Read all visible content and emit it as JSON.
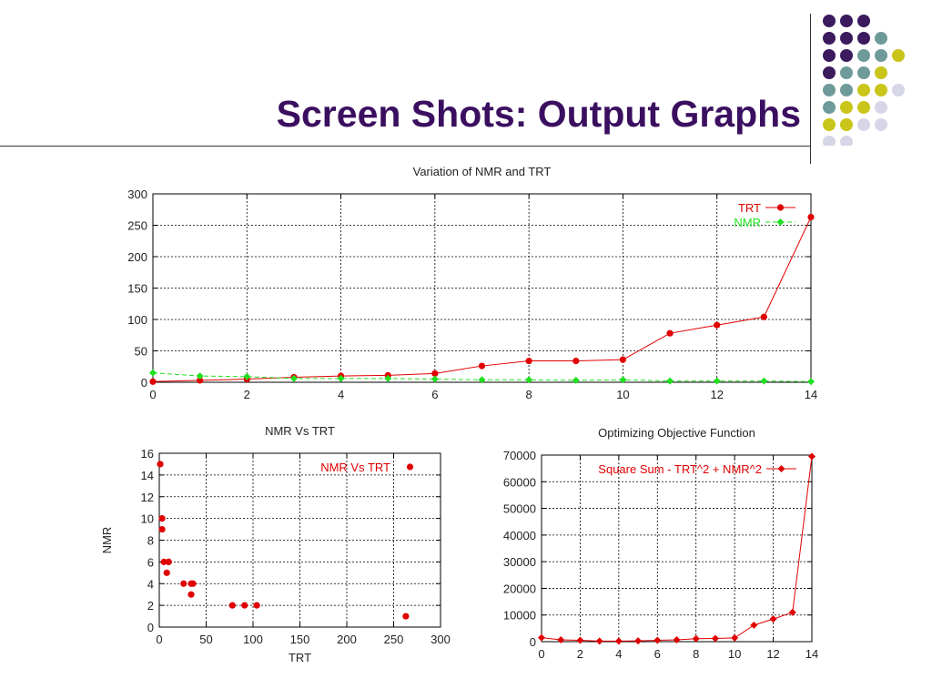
{
  "slide": {
    "title": "Screen Shots: Output Graphs",
    "dot_colors": {
      "purple": "#3b1a5e",
      "teal": "#6f9a9a",
      "olive": "#c9c51a",
      "lavender": "#d6d6e6"
    },
    "dot_grid": [
      [
        "purple",
        "purple",
        "purple"
      ],
      [
        "purple",
        "purple",
        "purple",
        "teal"
      ],
      [
        "purple",
        "purple",
        "teal",
        "teal",
        "olive"
      ],
      [
        "purple",
        "teal",
        "teal",
        "olive"
      ],
      [
        "teal",
        "teal",
        "olive",
        "olive",
        "lavender"
      ],
      [
        "teal",
        "olive",
        "olive",
        "lavender"
      ],
      [
        "olive",
        "olive",
        "lavender",
        "lavender"
      ],
      [
        "lavender",
        "lavender"
      ]
    ]
  },
  "chart_data": [
    {
      "type": "line",
      "title": "Variation of NMR and TRT",
      "xlabel": "",
      "ylabel": "",
      "xlim": [
        0,
        14
      ],
      "ylim": [
        0,
        300
      ],
      "xticks": [
        0,
        2,
        4,
        6,
        8,
        10,
        12,
        14
      ],
      "yticks": [
        0,
        50,
        100,
        150,
        200,
        250,
        300
      ],
      "grid": true,
      "legend": "top-right",
      "series": [
        {
          "name": "TRT",
          "color": "#e00000",
          "marker": "circle",
          "dash": false,
          "x": [
            0,
            1,
            2,
            3,
            4,
            5,
            6,
            7,
            8,
            9,
            10,
            11,
            12,
            13,
            14
          ],
          "y": [
            1,
            3,
            5,
            8,
            10,
            11,
            14,
            26,
            34,
            34,
            36,
            78,
            91,
            104,
            263
          ]
        },
        {
          "name": "NMR",
          "color": "#20e020",
          "marker": "diamond",
          "dash": true,
          "x": [
            0,
            1,
            2,
            3,
            4,
            5,
            6,
            7,
            8,
            9,
            10,
            11,
            12,
            13,
            14
          ],
          "y": [
            15,
            10,
            9,
            6,
            6,
            6,
            5,
            4,
            4,
            3,
            4,
            2,
            2,
            2,
            1
          ]
        }
      ]
    },
    {
      "type": "scatter",
      "title": "NMR Vs TRT",
      "xlabel": "TRT",
      "ylabel": "NMR",
      "xlim": [
        0,
        300
      ],
      "ylim": [
        0,
        16
      ],
      "xticks": [
        0,
        50,
        100,
        150,
        200,
        250,
        300
      ],
      "yticks": [
        0,
        2,
        4,
        6,
        8,
        10,
        12,
        14,
        16
      ],
      "grid": true,
      "legend": "top-right",
      "series": [
        {
          "name": "NMR Vs TRT",
          "color": "#e00000",
          "marker": "circle",
          "x": [
            1,
            3,
            3,
            5,
            8,
            10,
            10,
            26,
            34,
            34,
            36,
            78,
            91,
            104,
            263
          ],
          "y": [
            15,
            10,
            9,
            6,
            5,
            6,
            6,
            4,
            4,
            3,
            4,
            2,
            2,
            2,
            1
          ]
        }
      ]
    },
    {
      "type": "line",
      "title": "Optimizing Objective Function",
      "xlabel": "",
      "ylabel": "",
      "xlim": [
        0,
        14
      ],
      "ylim": [
        0,
        70000
      ],
      "xticks": [
        0,
        2,
        4,
        6,
        8,
        10,
        12,
        14
      ],
      "yticks": [
        0,
        10000,
        20000,
        30000,
        40000,
        50000,
        60000,
        70000
      ],
      "grid": true,
      "legend": "top-right",
      "series": [
        {
          "name": "Square Sum - TRT^2 + NMR^2",
          "color": "#e00000",
          "marker": "diamond",
          "dash": false,
          "x": [
            0,
            1,
            2,
            3,
            4,
            5,
            6,
            7,
            8,
            9,
            10,
            11,
            12,
            13,
            14
          ],
          "y": [
            1500,
            700,
            500,
            200,
            200,
            300,
            500,
            700,
            1100,
            1200,
            1400,
            6200,
            8500,
            11000,
            69500
          ]
        }
      ]
    }
  ]
}
